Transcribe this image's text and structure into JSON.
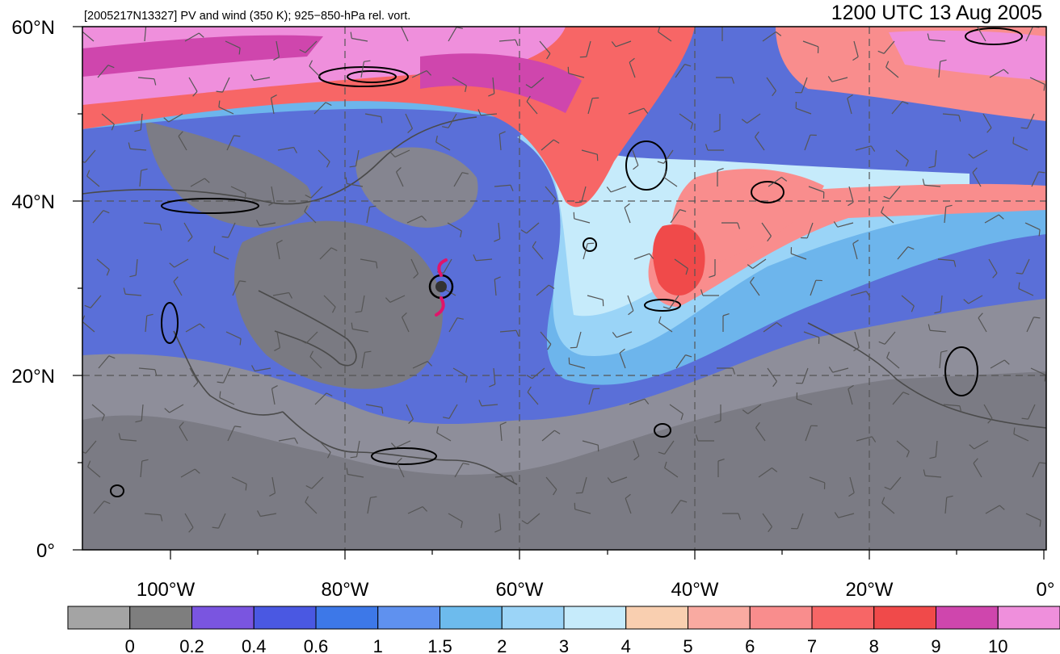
{
  "header": {
    "left_title": "[2005217N13327] PV and wind (350 K); 925−850-hPa rel. vort.",
    "right_title": "1200 UTC 13 Aug 2005"
  },
  "axes": {
    "lat_labels": [
      "60°N",
      "40°N",
      "20°N",
      "0°"
    ],
    "lon_labels": [
      "100°W",
      "80°W",
      "60°W",
      "40°W",
      "20°W",
      "0°"
    ]
  },
  "colorbar": {
    "colors": [
      "#a4a4a4",
      "#7e7e7e",
      "#7a55e0",
      "#4a58e2",
      "#3d78e8",
      "#5f91ef",
      "#6dbbed",
      "#9bd4f7",
      "#c6ebfb",
      "#f9cfb0",
      "#f9aaa1",
      "#f98d8d",
      "#f76666",
      "#f04a4a",
      "#cf46ad",
      "#ef8fdc"
    ],
    "labels": [
      "0",
      "0.2",
      "0.4",
      "0.6",
      "1",
      "1.5",
      "2",
      "3",
      "4",
      "5",
      "6",
      "7",
      "8",
      "9",
      "10"
    ]
  },
  "storm_marker": {
    "color": "#e0156b"
  }
}
